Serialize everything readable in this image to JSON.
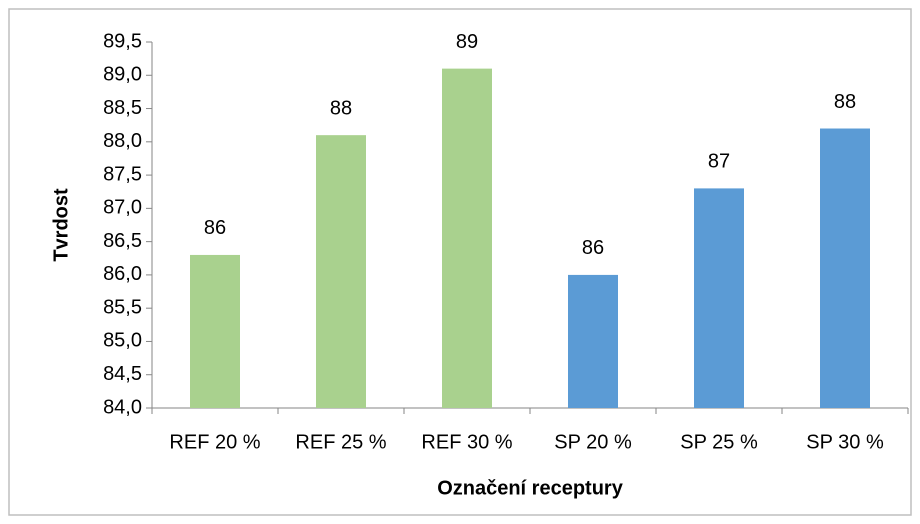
{
  "chart_data": {
    "type": "bar",
    "xlabel": "Označení receptury",
    "ylabel": "Tvrdost",
    "categories": [
      "REF 20 %",
      "REF 25 %",
      "REF 30 %",
      "SP 20 %",
      "SP 25 %",
      "SP 30 %"
    ],
    "values": [
      86.3,
      88.1,
      89.1,
      86.0,
      87.3,
      88.2
    ],
    "value_labels": [
      "86",
      "88",
      "89",
      "86",
      "87",
      "88"
    ],
    "colors": [
      "#a9d18e",
      "#a9d18e",
      "#a9d18e",
      "#5b9bd5",
      "#5b9bd5",
      "#5b9bd5"
    ],
    "ylim": [
      84,
      89.5
    ],
    "yticks": [
      {
        "value": 84,
        "label": "84,0"
      },
      {
        "value": 84.5,
        "label": "84,5"
      },
      {
        "value": 85,
        "label": "85,0"
      },
      {
        "value": 85.5,
        "label": "85,5"
      },
      {
        "value": 86,
        "label": "86,0"
      },
      {
        "value": 86.5,
        "label": "86,5"
      },
      {
        "value": 87,
        "label": "87,0"
      },
      {
        "value": 87.5,
        "label": "87,5"
      },
      {
        "value": 88,
        "label": "88,0"
      },
      {
        "value": 88.5,
        "label": "88,5"
      },
      {
        "value": 89,
        "label": "89,0"
      },
      {
        "value": 89.5,
        "label": "89,5"
      }
    ],
    "grid": false
  }
}
